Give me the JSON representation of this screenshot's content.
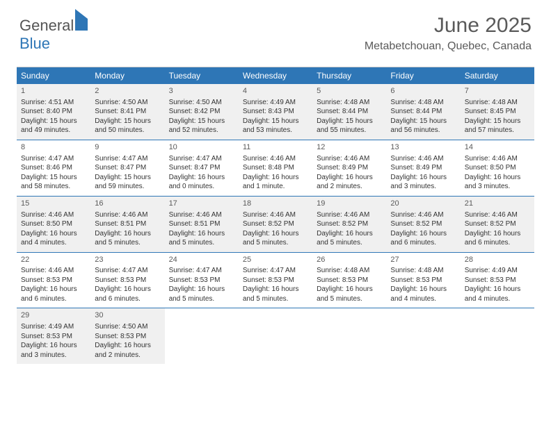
{
  "logo": {
    "part1": "General",
    "part2": "Blue"
  },
  "title": "June 2025",
  "location": "Metabetchouan, Quebec, Canada",
  "colors": {
    "header_bg": "#2e76b6",
    "header_text": "#ffffff",
    "row_alt_bg": "#f0f0f0",
    "text": "#333333",
    "separator": "#2e76b6"
  },
  "layout": {
    "columns": 7,
    "rows": 5,
    "first_day_column": 0
  },
  "days_of_week": [
    "Sunday",
    "Monday",
    "Tuesday",
    "Wednesday",
    "Thursday",
    "Friday",
    "Saturday"
  ],
  "days": [
    {
      "n": 1,
      "sunrise": "4:51 AM",
      "sunset": "8:40 PM",
      "daylight": "15 hours and 49 minutes."
    },
    {
      "n": 2,
      "sunrise": "4:50 AM",
      "sunset": "8:41 PM",
      "daylight": "15 hours and 50 minutes."
    },
    {
      "n": 3,
      "sunrise": "4:50 AM",
      "sunset": "8:42 PM",
      "daylight": "15 hours and 52 minutes."
    },
    {
      "n": 4,
      "sunrise": "4:49 AM",
      "sunset": "8:43 PM",
      "daylight": "15 hours and 53 minutes."
    },
    {
      "n": 5,
      "sunrise": "4:48 AM",
      "sunset": "8:44 PM",
      "daylight": "15 hours and 55 minutes."
    },
    {
      "n": 6,
      "sunrise": "4:48 AM",
      "sunset": "8:44 PM",
      "daylight": "15 hours and 56 minutes."
    },
    {
      "n": 7,
      "sunrise": "4:48 AM",
      "sunset": "8:45 PM",
      "daylight": "15 hours and 57 minutes."
    },
    {
      "n": 8,
      "sunrise": "4:47 AM",
      "sunset": "8:46 PM",
      "daylight": "15 hours and 58 minutes."
    },
    {
      "n": 9,
      "sunrise": "4:47 AM",
      "sunset": "8:47 PM",
      "daylight": "15 hours and 59 minutes."
    },
    {
      "n": 10,
      "sunrise": "4:47 AM",
      "sunset": "8:47 PM",
      "daylight": "16 hours and 0 minutes."
    },
    {
      "n": 11,
      "sunrise": "4:46 AM",
      "sunset": "8:48 PM",
      "daylight": "16 hours and 1 minute."
    },
    {
      "n": 12,
      "sunrise": "4:46 AM",
      "sunset": "8:49 PM",
      "daylight": "16 hours and 2 minutes."
    },
    {
      "n": 13,
      "sunrise": "4:46 AM",
      "sunset": "8:49 PM",
      "daylight": "16 hours and 3 minutes."
    },
    {
      "n": 14,
      "sunrise": "4:46 AM",
      "sunset": "8:50 PM",
      "daylight": "16 hours and 3 minutes."
    },
    {
      "n": 15,
      "sunrise": "4:46 AM",
      "sunset": "8:50 PM",
      "daylight": "16 hours and 4 minutes."
    },
    {
      "n": 16,
      "sunrise": "4:46 AM",
      "sunset": "8:51 PM",
      "daylight": "16 hours and 5 minutes."
    },
    {
      "n": 17,
      "sunrise": "4:46 AM",
      "sunset": "8:51 PM",
      "daylight": "16 hours and 5 minutes."
    },
    {
      "n": 18,
      "sunrise": "4:46 AM",
      "sunset": "8:52 PM",
      "daylight": "16 hours and 5 minutes."
    },
    {
      "n": 19,
      "sunrise": "4:46 AM",
      "sunset": "8:52 PM",
      "daylight": "16 hours and 5 minutes."
    },
    {
      "n": 20,
      "sunrise": "4:46 AM",
      "sunset": "8:52 PM",
      "daylight": "16 hours and 6 minutes."
    },
    {
      "n": 21,
      "sunrise": "4:46 AM",
      "sunset": "8:52 PM",
      "daylight": "16 hours and 6 minutes."
    },
    {
      "n": 22,
      "sunrise": "4:46 AM",
      "sunset": "8:53 PM",
      "daylight": "16 hours and 6 minutes."
    },
    {
      "n": 23,
      "sunrise": "4:47 AM",
      "sunset": "8:53 PM",
      "daylight": "16 hours and 6 minutes."
    },
    {
      "n": 24,
      "sunrise": "4:47 AM",
      "sunset": "8:53 PM",
      "daylight": "16 hours and 5 minutes."
    },
    {
      "n": 25,
      "sunrise": "4:47 AM",
      "sunset": "8:53 PM",
      "daylight": "16 hours and 5 minutes."
    },
    {
      "n": 26,
      "sunrise": "4:48 AM",
      "sunset": "8:53 PM",
      "daylight": "16 hours and 5 minutes."
    },
    {
      "n": 27,
      "sunrise": "4:48 AM",
      "sunset": "8:53 PM",
      "daylight": "16 hours and 4 minutes."
    },
    {
      "n": 28,
      "sunrise": "4:49 AM",
      "sunset": "8:53 PM",
      "daylight": "16 hours and 4 minutes."
    },
    {
      "n": 29,
      "sunrise": "4:49 AM",
      "sunset": "8:53 PM",
      "daylight": "16 hours and 3 minutes."
    },
    {
      "n": 30,
      "sunrise": "4:50 AM",
      "sunset": "8:53 PM",
      "daylight": "16 hours and 2 minutes."
    }
  ],
  "labels": {
    "sunrise": "Sunrise: ",
    "sunset": "Sunset: ",
    "daylight": "Daylight: "
  }
}
